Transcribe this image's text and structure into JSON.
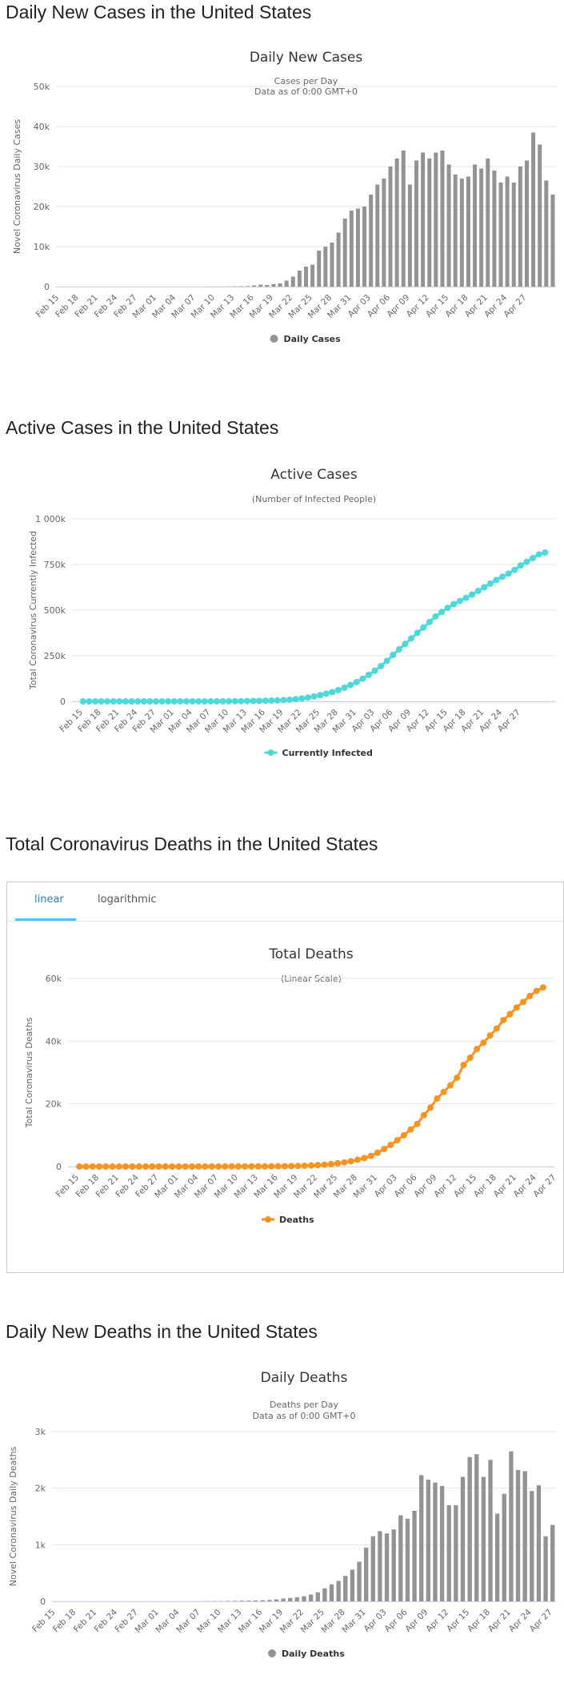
{
  "sections": {
    "daily_cases_title": "Daily New Cases in the United States",
    "active_cases_title": "Active Cases in the United States",
    "total_deaths_title": "Total Coronavirus Deaths in the United States",
    "daily_deaths_title": "Daily New Deaths in the United States"
  },
  "tabs": {
    "linear": "linear",
    "logarithmic": "logarithmic"
  },
  "colors": {
    "gray": "#939393",
    "cyan": "#4dd9d9",
    "orange": "#f7931e",
    "grid": "#e6e6e6",
    "axis": "#ccd6eb",
    "tab_active": "#337ab7"
  },
  "chart_data": [
    {
      "type": "bar",
      "title": "Daily New Cases",
      "subtitle": [
        "Cases per Day",
        "Data as of 0:00 GMT+0"
      ],
      "ylabel": "Novel Coronavirus Daily Cases",
      "ylim": [
        0,
        50000
      ],
      "y_ticks": [
        0,
        10000,
        20000,
        30000,
        40000,
        50000
      ],
      "y_tick_labels": [
        "0",
        "10k",
        "20k",
        "30k",
        "40k",
        "50k"
      ],
      "x_tick_labels": [
        "Feb 15",
        "Feb 18",
        "Feb 21",
        "Feb 24",
        "Feb 27",
        "Mar 01",
        "Mar 04",
        "Mar 07",
        "Mar 10",
        "Mar 13",
        "Mar 16",
        "Mar 19",
        "Mar 22",
        "Mar 25",
        "Mar 28",
        "Mar 31",
        "Apr 03",
        "Apr 06",
        "Apr 09",
        "Apr 12",
        "Apr 15",
        "Apr 18",
        "Apr 21",
        "Apr 24",
        "Apr 27"
      ],
      "legend": "Daily Cases",
      "grid": true,
      "series": [
        {
          "name": "Daily Cases",
          "values": [
            0,
            0,
            0,
            0,
            0,
            0,
            0,
            0,
            0,
            0,
            0,
            0,
            0,
            0,
            0,
            0,
            1,
            0,
            2,
            0,
            5,
            3,
            8,
            14,
            20,
            24,
            60,
            80,
            100,
            150,
            300,
            500,
            400,
            600,
            800,
            1500,
            2500,
            4000,
            5000,
            5500,
            9000,
            10000,
            11000,
            13500,
            17000,
            19000,
            19500,
            20000,
            23000,
            25500,
            27000,
            30000,
            32000,
            34000,
            25500,
            31500,
            33500,
            32000,
            33500,
            34000,
            30500,
            28000,
            27000,
            27500,
            30500,
            29500,
            32000,
            29000,
            26000,
            27500,
            26000,
            30000,
            31500,
            38500,
            35500,
            26500,
            23000
          ]
        }
      ]
    },
    {
      "type": "line",
      "title": "Active Cases",
      "subtitle": [
        "(Number of Infected People)"
      ],
      "ylabel": "Total Coronavirus Currently Infected",
      "ylim": [
        0,
        1000000
      ],
      "y_ticks": [
        0,
        250000,
        500000,
        750000,
        1000000
      ],
      "y_tick_labels": [
        "0",
        "250k",
        "500k",
        "750k",
        "1 000k"
      ],
      "x_tick_labels": [
        "Feb 15",
        "Feb 18",
        "Feb 21",
        "Feb 24",
        "Feb 27",
        "Mar 01",
        "Mar 04",
        "Mar 07",
        "Mar 10",
        "Mar 13",
        "Mar 16",
        "Mar 19",
        "Mar 22",
        "Mar 25",
        "Mar 28",
        "Mar 31",
        "Apr 03",
        "Apr 06",
        "Apr 09",
        "Apr 12",
        "Apr 15",
        "Apr 18",
        "Apr 21",
        "Apr 24",
        "Apr 27"
      ],
      "legend": "Currently Infected",
      "grid": true,
      "series": [
        {
          "name": "Currently Infected",
          "values": [
            15,
            15,
            15,
            15,
            15,
            15,
            15,
            20,
            25,
            30,
            35,
            40,
            45,
            50,
            60,
            70,
            80,
            90,
            100,
            130,
            180,
            250,
            350,
            500,
            700,
            950,
            1300,
            1700,
            2200,
            2800,
            3500,
            4500,
            5500,
            7000,
            9000,
            12000,
            16000,
            21000,
            27000,
            34000,
            42000,
            51000,
            62000,
            75000,
            90000,
            106000,
            124000,
            145000,
            168000,
            193000,
            222000,
            255000,
            285000,
            315000,
            345000,
            375000,
            405000,
            435000,
            465000,
            490000,
            512000,
            533000,
            550000,
            567000,
            585000,
            605000,
            625000,
            645000,
            665000,
            683000,
            700000,
            720000,
            745000,
            765000,
            785000,
            805000,
            815000
          ]
        }
      ]
    },
    {
      "type": "line",
      "title": "Total Deaths",
      "subtitle": [
        "(Linear Scale)"
      ],
      "ylabel": "Total Coronavirus Deaths",
      "ylim": [
        0,
        60000
      ],
      "y_ticks": [
        0,
        20000,
        40000,
        60000
      ],
      "y_tick_labels": [
        "0",
        "20k",
        "40k",
        "60k"
      ],
      "x_tick_labels": [
        "Feb 15",
        "Feb 18",
        "Feb 21",
        "Feb 24",
        "Feb 27",
        "Mar 01",
        "Mar 04",
        "Mar 07",
        "Mar 10",
        "Mar 13",
        "Mar 16",
        "Mar 19",
        "Mar 22",
        "Mar 25",
        "Mar 28",
        "Mar 31",
        "Apr 03",
        "Apr 06",
        "Apr 09",
        "Apr 12",
        "Apr 15",
        "Apr 18",
        "Apr 21",
        "Apr 24",
        "Apr 27"
      ],
      "legend": "Deaths",
      "grid": true,
      "series": [
        {
          "name": "Deaths",
          "values": [
            0,
            0,
            0,
            0,
            0,
            0,
            0,
            0,
            0,
            0,
            0,
            0,
            0,
            0,
            0,
            0,
            1,
            1,
            6,
            9,
            11,
            12,
            19,
            22,
            26,
            30,
            38,
            49,
            57,
            69,
            85,
            108,
            150,
            200,
            260,
            340,
            470,
            590,
            790,
            1050,
            1350,
            1700,
            2200,
            2700,
            3400,
            4400,
            5600,
            6900,
            8400,
            10000,
            11800,
            13600,
            16400,
            18800,
            21700,
            23800,
            25900,
            28300,
            32400,
            34700,
            37500,
            39500,
            41800,
            44000,
            46700,
            48600,
            50700,
            52500,
            54400,
            56000,
            57100
          ]
        }
      ]
    },
    {
      "type": "bar",
      "title": "Daily Deaths",
      "subtitle": [
        "Deaths per Day",
        "Data as of 0:00 GMT+0"
      ],
      "ylabel": "Novel Coronavirus Daily Deaths",
      "ylim": [
        0,
        3000
      ],
      "y_ticks": [
        0,
        1000,
        2000,
        3000
      ],
      "y_tick_labels": [
        "0",
        "1k",
        "2k",
        "3k"
      ],
      "x_tick_labels": [
        "Feb 15",
        "Feb 18",
        "Feb 21",
        "Feb 24",
        "Feb 27",
        "Mar 01",
        "Mar 04",
        "Mar 07",
        "Mar 10",
        "Mar 13",
        "Mar 16",
        "Mar 19",
        "Mar 22",
        "Mar 25",
        "Mar 28",
        "Mar 31",
        "Apr 03",
        "Apr 06",
        "Apr 09",
        "Apr 12",
        "Apr 15",
        "Apr 18",
        "Apr 21",
        "Apr 24",
        "Apr 27"
      ],
      "legend": "Daily Deaths",
      "grid": true,
      "series": [
        {
          "name": "Daily Deaths",
          "values": [
            0,
            0,
            0,
            0,
            0,
            0,
            0,
            0,
            0,
            0,
            0,
            0,
            0,
            0,
            0,
            0,
            0,
            0,
            0,
            0,
            1,
            2,
            3,
            4,
            5,
            6,
            8,
            10,
            12,
            15,
            20,
            25,
            35,
            50,
            60,
            70,
            90,
            120,
            160,
            230,
            300,
            360,
            450,
            560,
            700,
            950,
            1150,
            1240,
            1200,
            1270,
            1520,
            1460,
            1600,
            2230,
            2150,
            2100,
            2040,
            1700,
            1700,
            2200,
            2550,
            2600,
            2200,
            2500,
            1550,
            1900,
            2650,
            2320,
            2300,
            1950,
            2050,
            1150,
            1350
          ]
        }
      ]
    }
  ]
}
